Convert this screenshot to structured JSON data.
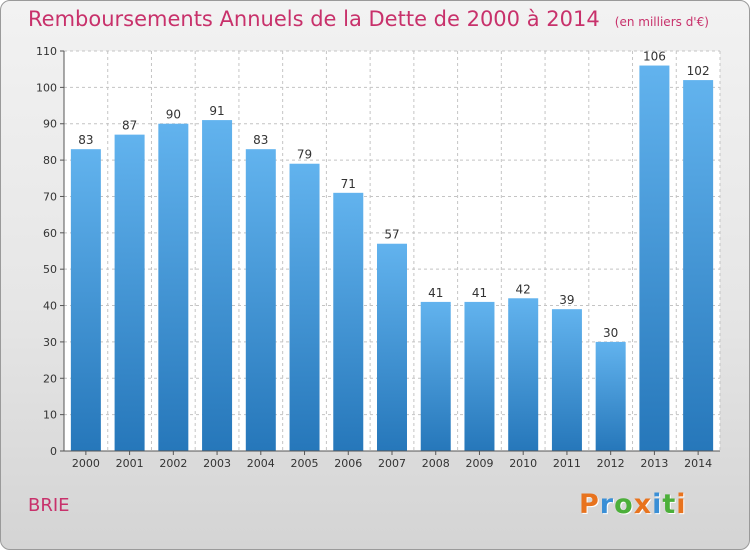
{
  "title": "Remboursements Annuels de la Dette de 2000 à 2014",
  "unit_note": "(en milliers d'€)",
  "location": "BRIE",
  "logo": {
    "letters": [
      "P",
      "r",
      "o",
      "x",
      "i",
      "t",
      "i"
    ],
    "colors": [
      "#e8731e",
      "#3a8fd6",
      "#4caf3a",
      "#e8731e",
      "#3a8fd6",
      "#4caf3a",
      "#e8731e"
    ]
  },
  "colors": {
    "title": "#c8316b",
    "bar_light": "#62b3ee",
    "bar_dark": "#2677ba"
  },
  "chart_data": {
    "type": "bar",
    "title": "Remboursements Annuels de la Dette de 2000 à 2014",
    "categories": [
      "2000",
      "2001",
      "2002",
      "2003",
      "2004",
      "2005",
      "2006",
      "2007",
      "2008",
      "2009",
      "2010",
      "2011",
      "2012",
      "2013",
      "2014"
    ],
    "values": [
      83,
      87,
      90,
      91,
      83,
      79,
      71,
      57,
      41,
      41,
      42,
      39,
      30,
      106,
      102
    ],
    "ylim": [
      0,
      110
    ],
    "yticks": [
      0,
      10,
      20,
      30,
      40,
      50,
      60,
      70,
      80,
      90,
      100,
      110
    ],
    "grid": true,
    "data_labels": true
  }
}
